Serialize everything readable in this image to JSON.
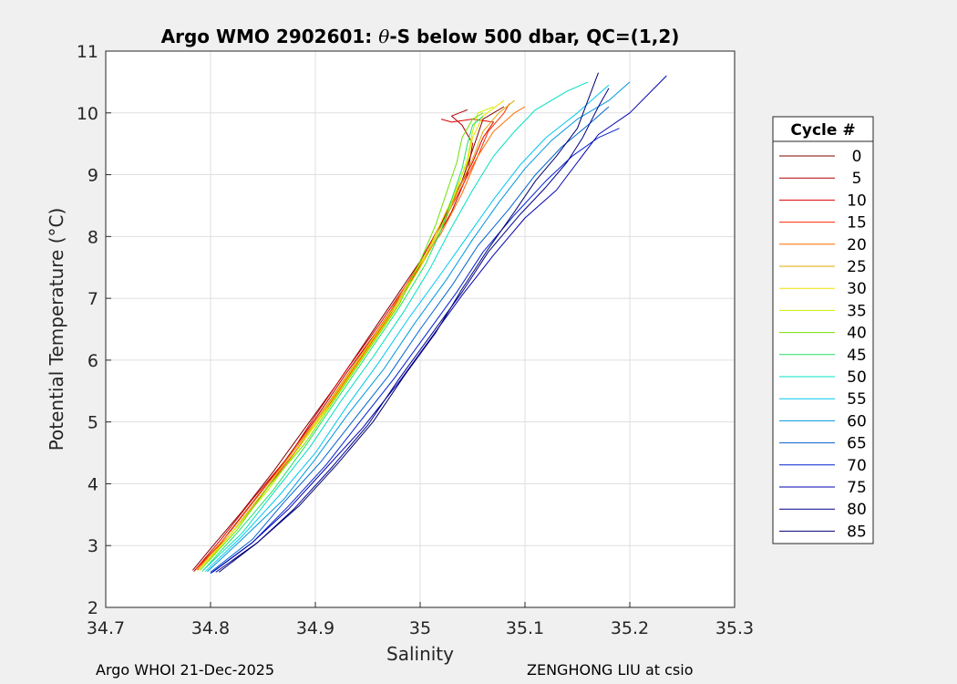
{
  "chart_data": {
    "type": "line",
    "title_pre": "Argo WMO 2902601: ",
    "title_symbol": "θ",
    "title_post": "-S below 500 dbar,  QC=(1,2)",
    "xlabel": "Salinity",
    "ylabel": "Potential Temperature (°C)",
    "xlim": [
      34.7,
      35.3
    ],
    "ylim": [
      2,
      11
    ],
    "xticks": [
      "34.7",
      "34.8",
      "34.9",
      "35",
      "35.1",
      "35.2",
      "35.3"
    ],
    "yticks": [
      "2",
      "3",
      "4",
      "5",
      "6",
      "7",
      "8",
      "9",
      "10",
      "11"
    ],
    "grid": true,
    "legend": {
      "title": "Cycle #",
      "placement": "right",
      "entries": [
        {
          "label": "0",
          "color": "#800000"
        },
        {
          "label": "5",
          "color": "#b00000"
        },
        {
          "label": "10",
          "color": "#e00000"
        },
        {
          "label": "15",
          "color": "#ff2a00"
        },
        {
          "label": "20",
          "color": "#ff6a00"
        },
        {
          "label": "25",
          "color": "#e0a800"
        },
        {
          "label": "30",
          "color": "#f0e000"
        },
        {
          "label": "35",
          "color": "#c8f000"
        },
        {
          "label": "40",
          "color": "#6ee000"
        },
        {
          "label": "45",
          "color": "#20e060"
        },
        {
          "label": "50",
          "color": "#00e0c0"
        },
        {
          "label": "55",
          "color": "#00c8f0"
        },
        {
          "label": "60",
          "color": "#0096e0"
        },
        {
          "label": "65",
          "color": "#0064d0"
        },
        {
          "label": "70",
          "color": "#0020d0"
        },
        {
          "label": "75",
          "color": "#0000b0"
        },
        {
          "label": "80",
          "color": "#00008c"
        },
        {
          "label": "85",
          "color": "#000070"
        }
      ]
    },
    "series": [
      {
        "cycle": "0",
        "color": "#800000",
        "points": [
          [
            34.783,
            2.6
          ],
          [
            34.8,
            2.95
          ],
          [
            34.83,
            3.55
          ],
          [
            34.86,
            4.2
          ],
          [
            34.89,
            4.9
          ],
          [
            34.92,
            5.6
          ],
          [
            34.95,
            6.35
          ],
          [
            34.98,
            7.1
          ],
          [
            35.0,
            7.6
          ],
          [
            35.02,
            8.2
          ],
          [
            35.04,
            8.9
          ],
          [
            35.05,
            9.4
          ],
          [
            35.06,
            9.9
          ],
          [
            35.08,
            10.1
          ]
        ]
      },
      {
        "cycle": "5",
        "color": "#b00000",
        "points": [
          [
            34.784,
            2.58
          ],
          [
            34.81,
            3.05
          ],
          [
            34.84,
            3.7
          ],
          [
            34.87,
            4.35
          ],
          [
            34.9,
            5.05
          ],
          [
            34.93,
            5.8
          ],
          [
            34.96,
            6.5
          ],
          [
            34.99,
            7.25
          ],
          [
            35.01,
            7.8
          ],
          [
            35.03,
            8.4
          ],
          [
            35.045,
            9.0
          ],
          [
            35.05,
            9.5
          ],
          [
            35.04,
            9.8
          ],
          [
            35.03,
            9.95
          ],
          [
            35.045,
            10.05
          ]
        ]
      },
      {
        "cycle": "10",
        "color": "#e00000",
        "points": [
          [
            34.785,
            2.6
          ],
          [
            34.81,
            3.1
          ],
          [
            34.84,
            3.75
          ],
          [
            34.875,
            4.45
          ],
          [
            34.9,
            5.1
          ],
          [
            34.93,
            5.85
          ],
          [
            34.96,
            6.55
          ],
          [
            34.99,
            7.3
          ],
          [
            35.01,
            7.9
          ],
          [
            35.03,
            8.55
          ],
          [
            35.05,
            9.2
          ],
          [
            35.06,
            9.6
          ],
          [
            35.07,
            9.85
          ],
          [
            35.05,
            9.9
          ],
          [
            35.03,
            9.85
          ],
          [
            35.02,
            9.9
          ]
        ]
      },
      {
        "cycle": "15",
        "color": "#ff2a00",
        "points": [
          [
            34.786,
            2.62
          ],
          [
            34.82,
            3.2
          ],
          [
            34.85,
            3.85
          ],
          [
            34.88,
            4.5
          ],
          [
            34.91,
            5.2
          ],
          [
            34.94,
            5.95
          ],
          [
            34.97,
            6.7
          ],
          [
            34.995,
            7.4
          ],
          [
            35.015,
            8.0
          ],
          [
            35.035,
            8.65
          ],
          [
            35.055,
            9.3
          ],
          [
            35.065,
            9.7
          ],
          [
            35.08,
            10.0
          ],
          [
            35.085,
            10.15
          ]
        ]
      },
      {
        "cycle": "20",
        "color": "#ff6a00",
        "points": [
          [
            34.787,
            2.6
          ],
          [
            34.82,
            3.25
          ],
          [
            34.85,
            3.9
          ],
          [
            34.88,
            4.55
          ],
          [
            34.91,
            5.25
          ],
          [
            34.94,
            6.0
          ],
          [
            34.97,
            6.75
          ],
          [
            34.995,
            7.45
          ],
          [
            35.02,
            8.05
          ],
          [
            35.04,
            8.7
          ],
          [
            35.055,
            9.3
          ],
          [
            35.07,
            9.7
          ],
          [
            35.09,
            10.0
          ],
          [
            35.1,
            10.1
          ]
        ]
      },
      {
        "cycle": "25",
        "color": "#e0a800",
        "points": [
          [
            34.788,
            2.6
          ],
          [
            34.82,
            3.2
          ],
          [
            34.85,
            3.85
          ],
          [
            34.88,
            4.55
          ],
          [
            34.915,
            5.3
          ],
          [
            34.945,
            6.05
          ],
          [
            34.975,
            6.8
          ],
          [
            35.0,
            7.5
          ],
          [
            35.02,
            8.1
          ],
          [
            35.035,
            8.7
          ],
          [
            35.05,
            9.25
          ],
          [
            35.06,
            9.7
          ],
          [
            35.075,
            10.0
          ],
          [
            35.09,
            10.2
          ]
        ]
      },
      {
        "cycle": "30",
        "color": "#f0e000",
        "points": [
          [
            34.789,
            2.62
          ],
          [
            34.82,
            3.2
          ],
          [
            34.855,
            3.9
          ],
          [
            34.885,
            4.6
          ],
          [
            34.915,
            5.3
          ],
          [
            34.945,
            6.05
          ],
          [
            34.975,
            6.8
          ],
          [
            35.0,
            7.5
          ],
          [
            35.015,
            8.05
          ],
          [
            35.03,
            8.6
          ],
          [
            35.045,
            9.2
          ],
          [
            35.05,
            9.6
          ],
          [
            35.06,
            9.95
          ],
          [
            35.08,
            10.2
          ]
        ]
      },
      {
        "cycle": "35",
        "color": "#c8f000",
        "points": [
          [
            34.79,
            2.6
          ],
          [
            34.82,
            3.2
          ],
          [
            34.855,
            3.9
          ],
          [
            34.885,
            4.6
          ],
          [
            34.915,
            5.35
          ],
          [
            34.945,
            6.1
          ],
          [
            34.975,
            6.85
          ],
          [
            35.0,
            7.55
          ],
          [
            35.02,
            8.15
          ],
          [
            35.035,
            8.75
          ],
          [
            35.045,
            9.25
          ],
          [
            35.05,
            9.7
          ],
          [
            35.055,
            10.0
          ],
          [
            35.07,
            10.1
          ]
        ]
      },
      {
        "cycle": "40",
        "color": "#6ee000",
        "points": [
          [
            34.79,
            2.6
          ],
          [
            34.825,
            3.25
          ],
          [
            34.855,
            3.95
          ],
          [
            34.89,
            4.65
          ],
          [
            34.92,
            5.4
          ],
          [
            34.95,
            6.15
          ],
          [
            34.98,
            6.9
          ],
          [
            35.0,
            7.6
          ],
          [
            35.015,
            8.2
          ],
          [
            35.025,
            8.7
          ],
          [
            35.035,
            9.2
          ],
          [
            35.04,
            9.6
          ],
          [
            35.05,
            9.9
          ],
          [
            35.06,
            10.0
          ]
        ]
      },
      {
        "cycle": "45",
        "color": "#20e060",
        "points": [
          [
            34.792,
            2.58
          ],
          [
            34.825,
            3.2
          ],
          [
            34.86,
            3.9
          ],
          [
            34.89,
            4.6
          ],
          [
            34.92,
            5.35
          ],
          [
            34.95,
            6.1
          ],
          [
            34.98,
            6.85
          ],
          [
            35.005,
            7.55
          ],
          [
            35.02,
            8.1
          ],
          [
            35.03,
            8.6
          ],
          [
            35.04,
            9.1
          ],
          [
            35.045,
            9.5
          ],
          [
            35.05,
            9.8
          ],
          [
            35.06,
            9.95
          ]
        ]
      },
      {
        "cycle": "50",
        "color": "#00e0c0",
        "points": [
          [
            34.793,
            2.6
          ],
          [
            34.83,
            3.2
          ],
          [
            34.86,
            3.85
          ],
          [
            34.895,
            4.6
          ],
          [
            34.925,
            5.35
          ],
          [
            34.955,
            6.05
          ],
          [
            34.985,
            6.8
          ],
          [
            35.01,
            7.5
          ],
          [
            35.03,
            8.15
          ],
          [
            35.05,
            8.75
          ],
          [
            35.07,
            9.3
          ],
          [
            35.09,
            9.7
          ],
          [
            35.11,
            10.05
          ],
          [
            35.14,
            10.35
          ],
          [
            35.16,
            10.5
          ]
        ]
      },
      {
        "cycle": "55",
        "color": "#00c8f0",
        "points": [
          [
            34.795,
            2.58
          ],
          [
            34.83,
            3.15
          ],
          [
            34.865,
            3.8
          ],
          [
            34.9,
            4.5
          ],
          [
            34.93,
            5.25
          ],
          [
            34.96,
            5.95
          ],
          [
            34.99,
            6.7
          ],
          [
            35.02,
            7.4
          ],
          [
            35.045,
            8.0
          ],
          [
            35.07,
            8.6
          ],
          [
            35.095,
            9.15
          ],
          [
            35.12,
            9.6
          ],
          [
            35.15,
            10.0
          ],
          [
            35.17,
            10.3
          ],
          [
            35.18,
            10.45
          ]
        ]
      },
      {
        "cycle": "60",
        "color": "#0096e0",
        "points": [
          [
            34.797,
            2.58
          ],
          [
            34.83,
            3.1
          ],
          [
            34.87,
            3.75
          ],
          [
            34.9,
            4.4
          ],
          [
            34.93,
            5.1
          ],
          [
            34.965,
            5.85
          ],
          [
            34.995,
            6.6
          ],
          [
            35.025,
            7.3
          ],
          [
            35.05,
            7.95
          ],
          [
            35.075,
            8.55
          ],
          [
            35.1,
            9.1
          ],
          [
            35.125,
            9.55
          ],
          [
            35.15,
            9.9
          ],
          [
            35.18,
            10.2
          ],
          [
            35.2,
            10.5
          ]
        ]
      },
      {
        "cycle": "65",
        "color": "#0064d0",
        "points": [
          [
            34.8,
            2.57
          ],
          [
            34.84,
            3.1
          ],
          [
            34.87,
            3.7
          ],
          [
            34.905,
            4.35
          ],
          [
            34.935,
            5.0
          ],
          [
            34.97,
            5.75
          ],
          [
            35.0,
            6.5
          ],
          [
            35.03,
            7.2
          ],
          [
            35.055,
            7.85
          ],
          [
            35.085,
            8.45
          ],
          [
            35.11,
            9.0
          ],
          [
            35.135,
            9.45
          ],
          [
            35.16,
            9.8
          ],
          [
            35.18,
            10.1
          ]
        ]
      },
      {
        "cycle": "70",
        "color": "#0020d0",
        "points": [
          [
            34.8,
            2.55
          ],
          [
            34.84,
            3.05
          ],
          [
            34.875,
            3.65
          ],
          [
            34.91,
            4.3
          ],
          [
            34.94,
            4.95
          ],
          [
            34.975,
            5.7
          ],
          [
            35.005,
            6.4
          ],
          [
            35.035,
            7.1
          ],
          [
            35.06,
            7.75
          ],
          [
            35.09,
            8.35
          ],
          [
            35.12,
            8.9
          ],
          [
            35.145,
            9.3
          ],
          [
            35.17,
            9.6
          ],
          [
            35.19,
            9.75
          ]
        ]
      },
      {
        "cycle": "75",
        "color": "#0000b0",
        "points": [
          [
            34.802,
            2.57
          ],
          [
            34.84,
            3.05
          ],
          [
            34.875,
            3.6
          ],
          [
            34.91,
            4.25
          ],
          [
            34.945,
            4.9
          ],
          [
            34.98,
            5.65
          ],
          [
            35.01,
            6.35
          ],
          [
            35.04,
            7.05
          ],
          [
            35.07,
            7.7
          ],
          [
            35.1,
            8.3
          ],
          [
            35.13,
            8.75
          ],
          [
            35.15,
            9.2
          ],
          [
            35.17,
            9.65
          ],
          [
            35.2,
            10.0
          ],
          [
            35.235,
            10.6
          ]
        ]
      },
      {
        "cycle": "80",
        "color": "#00008c",
        "points": [
          [
            34.805,
            2.57
          ],
          [
            34.845,
            3.05
          ],
          [
            34.88,
            3.6
          ],
          [
            34.915,
            4.25
          ],
          [
            34.95,
            4.95
          ],
          [
            34.98,
            5.7
          ],
          [
            35.01,
            6.4
          ],
          [
            35.04,
            7.1
          ],
          [
            35.065,
            7.75
          ],
          [
            35.095,
            8.35
          ],
          [
            35.12,
            8.8
          ],
          [
            35.14,
            9.2
          ],
          [
            35.155,
            9.6
          ],
          [
            35.17,
            10.1
          ],
          [
            35.18,
            10.4
          ]
        ]
      },
      {
        "cycle": "85",
        "color": "#000070",
        "points": [
          [
            34.808,
            2.57
          ],
          [
            34.845,
            3.05
          ],
          [
            34.885,
            3.65
          ],
          [
            34.92,
            4.3
          ],
          [
            34.955,
            5.0
          ],
          [
            34.985,
            5.75
          ],
          [
            35.015,
            6.45
          ],
          [
            35.04,
            7.15
          ],
          [
            35.065,
            7.8
          ],
          [
            35.09,
            8.4
          ],
          [
            35.11,
            8.9
          ],
          [
            35.13,
            9.3
          ],
          [
            35.15,
            9.75
          ],
          [
            35.16,
            10.2
          ],
          [
            35.17,
            10.65
          ]
        ]
      }
    ]
  },
  "footer": {
    "left": "Argo WHOI 21-Dec-2025",
    "right": "ZENGHONG LIU at csio"
  }
}
